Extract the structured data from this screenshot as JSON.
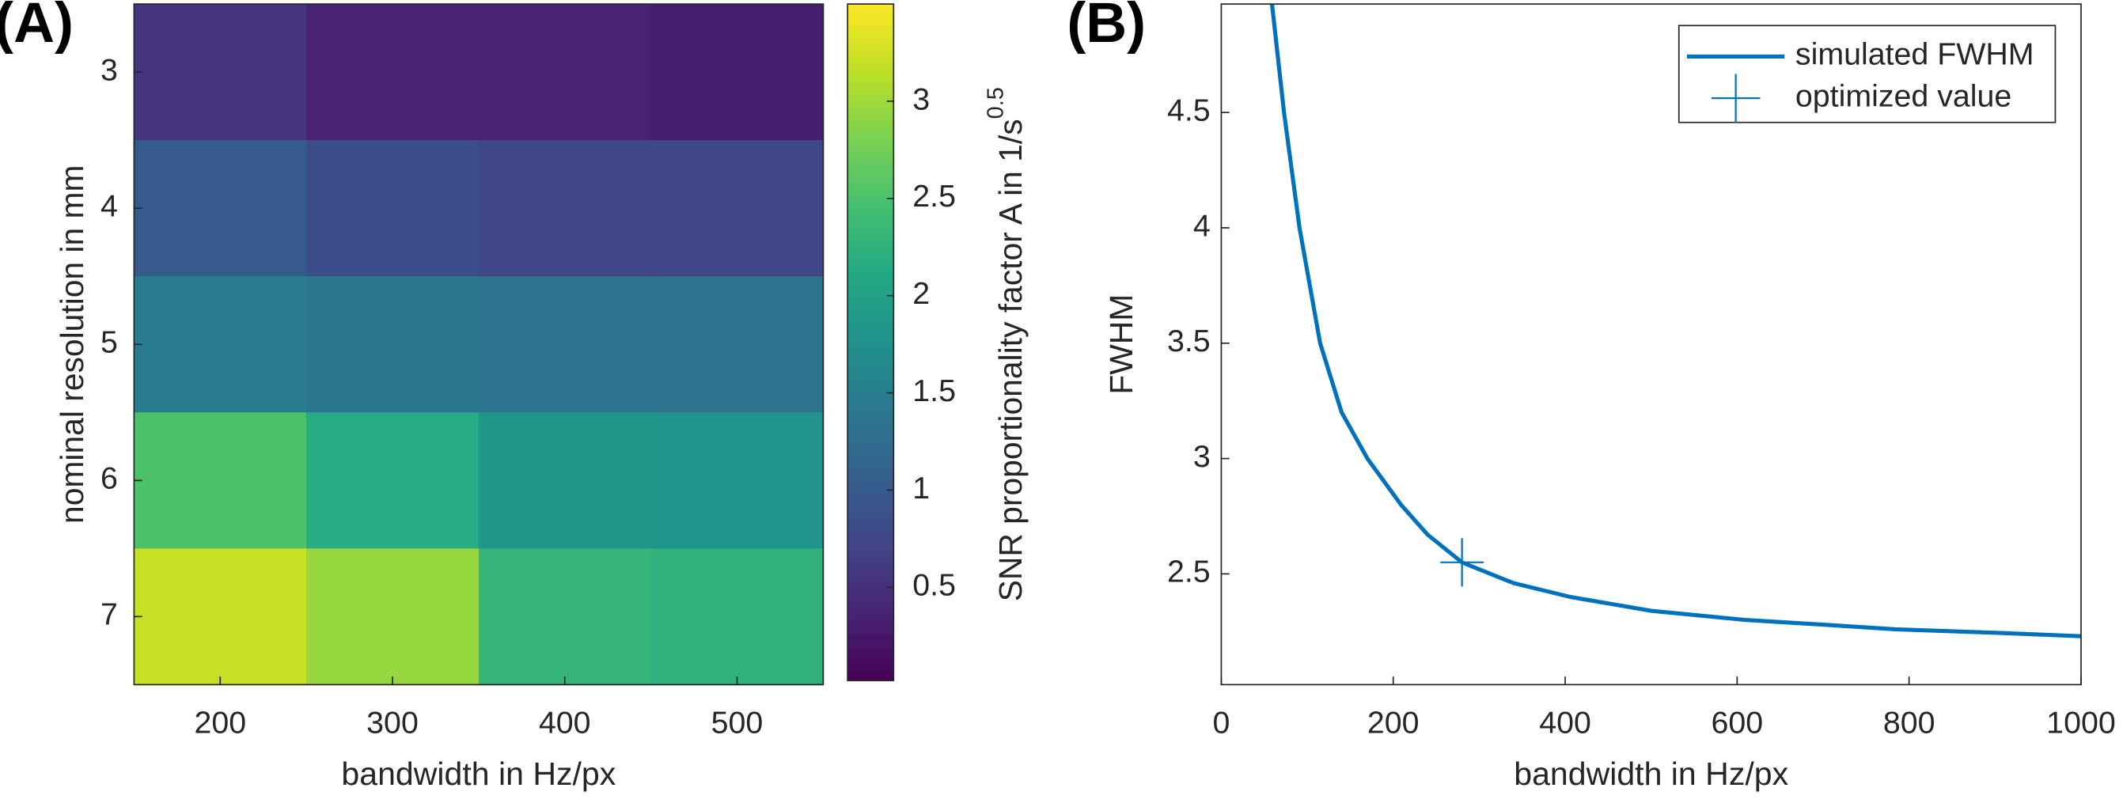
{
  "chart_data": [
    {
      "type": "heatmap",
      "panel_label": "(A)",
      "x_label": "bandwidth in Hz/px",
      "y_label": "nominal resolution in mm",
      "categories": [
        200,
        300,
        400,
        500
      ],
      "y_categories": [
        3,
        4,
        5,
        6,
        7
      ],
      "values": [
        [
          0.55,
          0.35,
          0.35,
          0.3
        ],
        [
          1.0,
          0.85,
          0.75,
          0.75
        ],
        [
          1.45,
          1.4,
          1.35,
          1.35
        ],
        [
          2.5,
          2.15,
          1.85,
          1.8
        ],
        [
          3.2,
          2.95,
          2.3,
          2.25
        ]
      ],
      "xlim": [
        150,
        550
      ],
      "xticks": [
        200,
        300,
        400,
        500
      ],
      "ylim": [
        2.5,
        7.5
      ],
      "yticks": [
        3,
        4,
        5,
        6,
        7
      ],
      "y_reversed": true,
      "colormap": "viridis",
      "clim": [
        0.02,
        3.5
      ],
      "cticks": [
        0.5,
        1,
        1.5,
        2,
        2.5,
        3
      ],
      "colorbar_label": "SNR proportionality factor A in 1/s",
      "colorbar_label_sup": "0.5"
    },
    {
      "type": "line",
      "panel_label": "(B)",
      "x_label": "bandwidth in Hz/px",
      "y_label": "FWHM",
      "series": [
        {
          "name": "simulated FWHM",
          "color": "#0072bd",
          "x": [
            59,
            73,
            91,
            115,
            140,
            170,
            209,
            240,
            280,
            340,
            406,
            500,
            611,
            700,
            784,
            900,
            1000
          ],
          "values": [
            4.97,
            4.5,
            4.0,
            3.5,
            3.2,
            3.0,
            2.8,
            2.67,
            2.55,
            2.46,
            2.4,
            2.34,
            2.3,
            2.28,
            2.26,
            2.245,
            2.23
          ]
        }
      ],
      "marker": {
        "name": "optimized value",
        "color": "#0072bd",
        "x": 280,
        "y": 2.55
      },
      "xlim": [
        0,
        1000
      ],
      "xticks": [
        0,
        200,
        400,
        600,
        800,
        1000
      ],
      "ylim": [
        2.02,
        4.97
      ],
      "yticks": [
        2.5,
        3,
        3.5,
        4,
        4.5
      ],
      "legend": "upper right"
    }
  ]
}
